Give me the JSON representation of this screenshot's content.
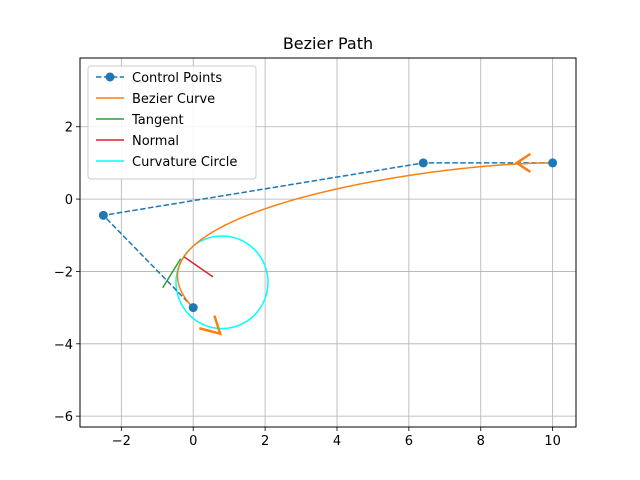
{
  "chart_data": {
    "type": "line",
    "title": "Bezier Path",
    "xlabel": "",
    "ylabel": "",
    "xlim": [
      -3.15,
      10.65
    ],
    "ylim": [
      -6.3,
      3.9
    ],
    "x_ticks": [
      -2,
      0,
      2,
      4,
      6,
      8,
      10
    ],
    "y_ticks": [
      -6,
      -4,
      -2,
      0,
      2
    ],
    "x_tick_labels": [
      "−2",
      "0",
      "2",
      "4",
      "6",
      "8",
      "10"
    ],
    "y_tick_labels": [
      "−6",
      "−4",
      "−2",
      "0",
      "2"
    ],
    "grid": true,
    "legend_position": "top-left",
    "legend": [
      {
        "label": "Control Points",
        "color": "#1f77b4",
        "style": "dashed-marker"
      },
      {
        "label": "Bezier Curve",
        "color": "#ff7f0e",
        "style": "solid"
      },
      {
        "label": "Tangent",
        "color": "#2ca02c",
        "style": "solid"
      },
      {
        "label": "Normal",
        "color": "#d62728",
        "style": "solid"
      },
      {
        "label": "Curvature Circle",
        "color": "#00ffff",
        "style": "solid"
      }
    ],
    "series": [
      {
        "name": "Control Points",
        "color": "#1f77b4",
        "points": [
          [
            10,
            1
          ],
          [
            6.4,
            1
          ],
          [
            -2.5,
            -0.45
          ],
          [
            0,
            -3
          ]
        ]
      },
      {
        "name": "Bezier Curve",
        "color": "#ff7f0e",
        "bezier": [
          [
            10,
            1
          ],
          [
            6.4,
            1
          ],
          [
            -2.5,
            -0.45
          ],
          [
            0,
            -3
          ]
        ],
        "arrowheads": [
          {
            "tip": [
              9.0,
              1.0
            ],
            "wing1": [
              9.38,
              1.25
            ],
            "wing2": [
              9.38,
              0.75
            ]
          },
          {
            "tip": [
              0.75,
              -3.72
            ],
            "wing1": [
              0.59,
              -3.22
            ],
            "wing2": [
              0.17,
              -3.57
            ]
          }
        ]
      },
      {
        "name": "Tangent",
        "color": "#2ca02c",
        "points": [
          [
            -0.85,
            -2.45
          ],
          [
            -0.35,
            -1.65
          ]
        ]
      },
      {
        "name": "Normal",
        "color": "#d62728",
        "points": [
          [
            -0.25,
            -1.6
          ],
          [
            0.55,
            -2.15
          ]
        ]
      },
      {
        "name": "Curvature Circle",
        "color": "#00ffff",
        "center": [
          0.8,
          -2.3
        ],
        "radius": 1.28
      }
    ]
  }
}
